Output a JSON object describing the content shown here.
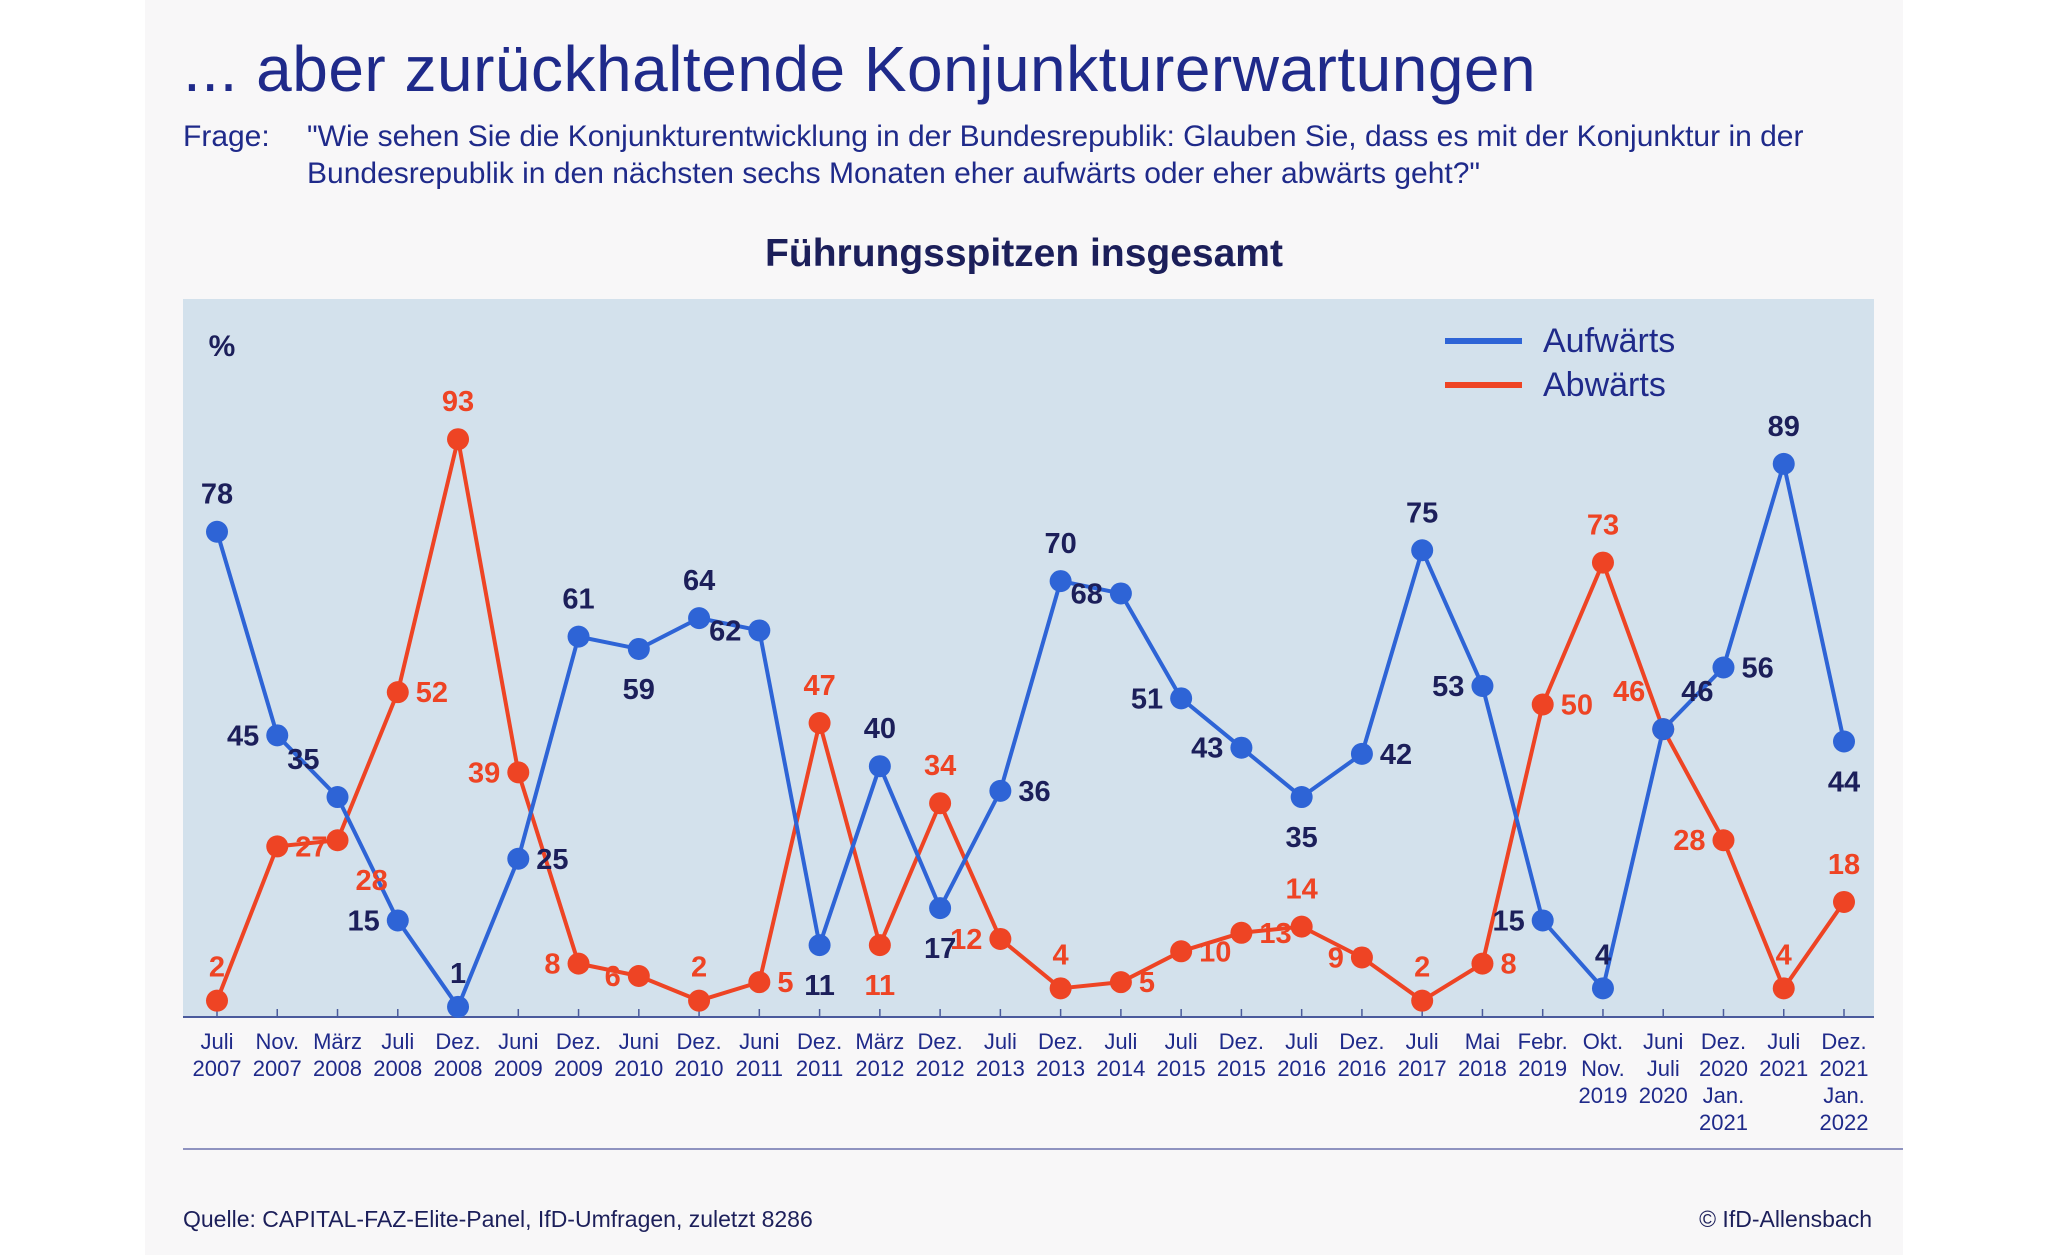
{
  "title": "... aber zurückhaltende Konjunkturerwartungen",
  "question_label": "Frage:",
  "question_text": "\"Wie sehen Sie die Konjunkturentwicklung in der Bundesrepublik: Glauben Sie, dass es mit der Konjunktur in der Bundesrepublik in den nächsten sechs Monaten eher aufwärts oder eher abwärts geht?\"",
  "source": "Quelle: CAPITAL-FAZ-Elite-Panel, IfD-Umfragen, zuletzt 8286",
  "credit": "© IfD-Allensbach",
  "colors": {
    "plot_background": "#d3e1ec",
    "series_up": "#2e64d6",
    "series_down": "#ee4424",
    "label_up": "#1c1f5a",
    "label_down": "#ee4424",
    "text_dark": "#1f2a8a"
  },
  "chart_data": {
    "type": "line",
    "title": "Führungsspitzen insgesamt",
    "ylabel": "%",
    "ylim": [
      0,
      100
    ],
    "grid": false,
    "legend_position": "top-right",
    "categories": [
      [
        "Juli",
        "2007"
      ],
      [
        "Nov.",
        "2007"
      ],
      [
        "März",
        "2008"
      ],
      [
        "Juli",
        "2008"
      ],
      [
        "Dez.",
        "2008"
      ],
      [
        "Juni",
        "2009"
      ],
      [
        "Dez.",
        "2009"
      ],
      [
        "Juni",
        "2010"
      ],
      [
        "Dez.",
        "2010"
      ],
      [
        "Juni",
        "2011"
      ],
      [
        "Dez.",
        "2011"
      ],
      [
        "März",
        "2012"
      ],
      [
        "Dez.",
        "2012"
      ],
      [
        "Juli",
        "2013"
      ],
      [
        "Dez.",
        "2013"
      ],
      [
        "Juli",
        "2014"
      ],
      [
        "Juli",
        "2015"
      ],
      [
        "Dez.",
        "2015"
      ],
      [
        "Juli",
        "2016"
      ],
      [
        "Dez.",
        "2016"
      ],
      [
        "Juli",
        "2017"
      ],
      [
        "Mai",
        "2018"
      ],
      [
        "Febr.",
        "2019"
      ],
      [
        "Okt.",
        "Nov.",
        "2019"
      ],
      [
        "Juni",
        "Juli",
        "2020"
      ],
      [
        "Dez.",
        "2020",
        "Jan.",
        "2021"
      ],
      [
        "Juli",
        "2021"
      ],
      [
        "Dez.",
        "2021",
        "Jan.",
        "2022"
      ]
    ],
    "series": [
      {
        "name": "Aufwärts",
        "values": [
          78,
          45,
          35,
          15,
          1,
          25,
          61,
          59,
          64,
          62,
          11,
          40,
          17,
          36,
          70,
          68,
          51,
          43,
          35,
          42,
          75,
          53,
          15,
          4,
          46,
          56,
          89,
          44
        ]
      },
      {
        "name": "Abwärts",
        "values": [
          2,
          27,
          28,
          52,
          93,
          39,
          8,
          6,
          2,
          5,
          47,
          11,
          34,
          12,
          4,
          5,
          10,
          13,
          14,
          9,
          2,
          8,
          50,
          73,
          46,
          28,
          4,
          18
        ]
      }
    ]
  }
}
